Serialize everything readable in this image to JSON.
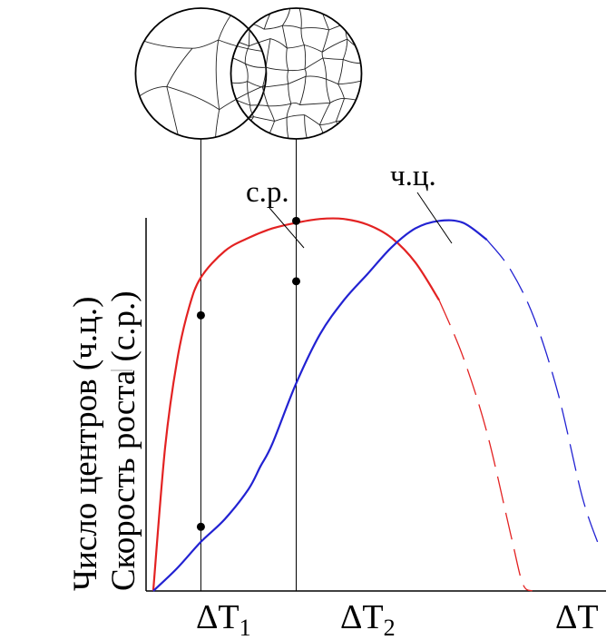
{
  "chart_data": {
    "type": "line",
    "title": "",
    "ylabel_lines": [
      "Число центров (ч.ц.)",
      "Скорость роста (с.р.)"
    ],
    "xlabel": "ΔT",
    "x_ticks": [
      {
        "base": "ΔT",
        "sub": "1"
      },
      {
        "base": "ΔT",
        "sub": "2"
      }
    ],
    "series": [
      {
        "name": "с.р.",
        "color": "#e32222",
        "x": [
          0,
          0.5,
          1,
          1.5,
          2,
          3,
          4,
          5,
          6,
          7,
          8,
          9,
          10,
          11,
          12,
          13,
          14,
          15,
          15.5,
          15.9
        ],
        "y": [
          0,
          38,
          61,
          75,
          83,
          90,
          93.5,
          96,
          97.5,
          98.5,
          98.5,
          97,
          93.5,
          87,
          77,
          62,
          42,
          15,
          2,
          0
        ]
      },
      {
        "name": "ч.ц.",
        "color": "#2222d2",
        "x": [
          0,
          1,
          2,
          3,
          4,
          4.5,
          5,
          6,
          7,
          8,
          9,
          10,
          11,
          12,
          13,
          14,
          15,
          16,
          17,
          18,
          18.7
        ],
        "y": [
          0,
          6,
          13,
          19,
          27,
          33,
          39,
          55,
          68,
          77,
          84,
          91,
          96,
          98,
          97.5,
          93,
          85,
          72,
          52,
          25,
          12
        ]
      }
    ],
    "solid_until_x": [
      12,
      14
    ],
    "markers": [
      {
        "x": 2,
        "y": 73
      },
      {
        "x": 2,
        "y": 17
      },
      {
        "x": 6,
        "y": 98
      },
      {
        "x": 6,
        "y": 82
      }
    ],
    "reference_lines_x": [
      2,
      6
    ],
    "micrographs": [
      {
        "label": "coarse-grain",
        "at_x": 2,
        "grain": "coarse"
      },
      {
        "label": "fine-grain",
        "at_x": 6,
        "grain": "fine"
      }
    ],
    "xlim": [
      -0.3,
      19
    ],
    "ylim": [
      0,
      100
    ],
    "grid": false
  }
}
